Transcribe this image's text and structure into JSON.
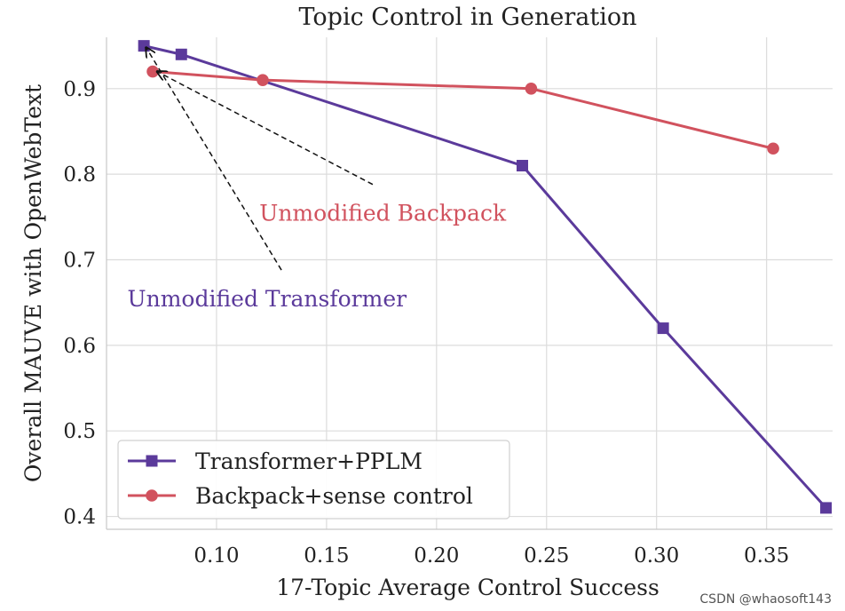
{
  "chart_data": {
    "type": "line",
    "title": "Topic Control in Generation",
    "xlabel": "17-Topic Average Control Success",
    "ylabel": "Overall MAUVE with OpenWebText",
    "xlim": [
      0.05,
      0.38
    ],
    "ylim": [
      0.385,
      0.96
    ],
    "xticks": [
      0.1,
      0.15,
      0.2,
      0.25,
      0.3,
      0.35
    ],
    "xtick_labels": [
      "0.10",
      "0.15",
      "0.20",
      "0.25",
      "0.30",
      "0.35"
    ],
    "yticks": [
      0.4,
      0.5,
      0.6,
      0.7,
      0.8,
      0.9
    ],
    "ytick_labels": [
      "0.4",
      "0.5",
      "0.6",
      "0.7",
      "0.8",
      "0.9"
    ],
    "grid": true,
    "legend_position": "bottom-left",
    "series": [
      {
        "name": "Transformer+PPLM",
        "color": "#5b3a9b",
        "marker": "square",
        "x": [
          0.067,
          0.084,
          0.239,
          0.303,
          0.377
        ],
        "y": [
          0.95,
          0.94,
          0.81,
          0.62,
          0.41
        ]
      },
      {
        "name": "Backpack+sense control",
        "color": "#d1525e",
        "marker": "circle",
        "x": [
          0.071,
          0.121,
          0.243,
          0.353
        ],
        "y": [
          0.92,
          0.91,
          0.9,
          0.83
        ]
      }
    ],
    "annotations": [
      {
        "text": "Unmodified Backpack",
        "color": "#d1525e",
        "text_at": [
          0.1195,
          0.755
        ],
        "arrow_from": [
          0.171,
          0.788
        ],
        "arrow_to": [
          0.073,
          0.92
        ]
      },
      {
        "text": "Unmodified Transformer",
        "color": "#5b3a9b",
        "text_at": [
          0.0595,
          0.655
        ],
        "arrow_from": [
          0.1295,
          0.688
        ],
        "arrow_to": [
          0.068,
          0.948
        ]
      }
    ]
  },
  "watermark": "CSDN @whaosoft143"
}
